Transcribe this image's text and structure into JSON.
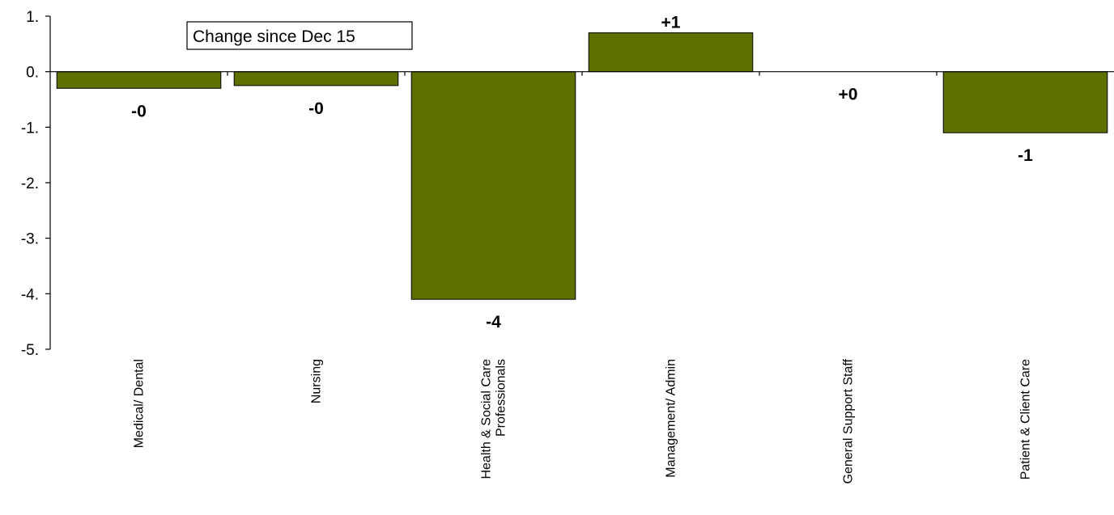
{
  "chart_data": {
    "type": "bar",
    "categories": [
      "Medical/ Dental",
      "Nursing",
      "Health & Social Care Professionals",
      "Management/ Admin",
      "General Support Staff",
      "Patient & Client Care"
    ],
    "category_lines": [
      [
        "Medical/ Dental"
      ],
      [
        "Nursing"
      ],
      [
        "Health & Social Care",
        "Professionals"
      ],
      [
        "Management/ Admin"
      ],
      [
        "General Support Staff"
      ],
      [
        "Patient & Client Care"
      ]
    ],
    "values": [
      -0.3,
      -0.25,
      -4.1,
      0.7,
      0.0,
      -1.1
    ],
    "data_labels": [
      "-0",
      "-0",
      "-4",
      "+1",
      "+0",
      "-1"
    ],
    "ylim": [
      -5,
      1
    ],
    "y_ticks": [
      1,
      0,
      -1,
      -2,
      -3,
      -4,
      -5
    ],
    "y_tick_labels": [
      "1.",
      "0.",
      "-1.",
      "-2.",
      "-3.",
      "-4.",
      "-5."
    ],
    "legend_text": "Change since Dec 15",
    "bar_color": "#5f7000",
    "grid": false
  }
}
